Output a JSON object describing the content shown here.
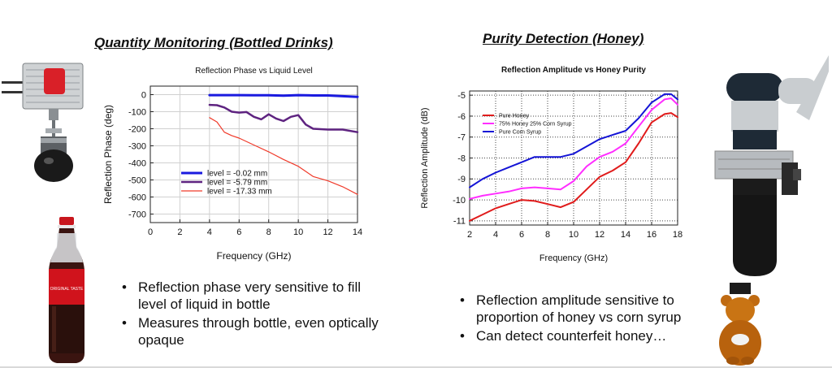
{
  "left": {
    "heading": "Quantity Monitoring (Bottled Drinks)",
    "bullets": [
      "Reflection phase very sensitive to fill level of liquid in bottle",
      "Measures through bottle, even optically opaque"
    ],
    "bottle_label": "ORIGINAL TASTE"
  },
  "right": {
    "heading": "Purity Detection (Honey)",
    "bullets": [
      "Reflection amplitude sensitive to proportion of honey vs corn syrup",
      "Can detect counterfeit honey…"
    ]
  },
  "bullet_char": "•",
  "chart_data": [
    {
      "type": "line",
      "title": "Reflection Phase vs Liquid Level",
      "xlabel": "Frequency (GHz)",
      "ylabel": "Reflection Phase (deg)",
      "xlim": [
        0,
        14
      ],
      "ylim": [
        -750,
        50
      ],
      "xticks": [
        0,
        2,
        4,
        6,
        8,
        10,
        12,
        14
      ],
      "yticks": [
        0,
        -100,
        -200,
        -300,
        -400,
        -500,
        -600,
        -700
      ],
      "grid": true,
      "legend": "lower-left",
      "series": [
        {
          "name": "level = -0.02 mm",
          "color": "#1a1adf",
          "x": [
            4,
            5,
            6,
            7,
            8,
            9,
            10,
            11,
            12,
            13,
            14
          ],
          "y": [
            -3,
            -3,
            -3,
            -4,
            -4,
            -6,
            -3,
            -5,
            -5,
            -9,
            -13
          ]
        },
        {
          "name": "level = -5.79 mm",
          "color": "#5e2380",
          "x": [
            4,
            4.5,
            5,
            5.5,
            6,
            6.5,
            7,
            7.5,
            8,
            8.5,
            9,
            9.5,
            10,
            10.5,
            11,
            12,
            13,
            14
          ],
          "y": [
            -60,
            -62,
            -75,
            -100,
            -105,
            -102,
            -130,
            -145,
            -115,
            -140,
            -155,
            -130,
            -120,
            -175,
            -200,
            -205,
            -205,
            -220
          ]
        },
        {
          "name": "level = -17.33 mm",
          "color": "#f03a2a",
          "x": [
            4,
            4.5,
            5,
            5.5,
            6,
            7,
            8,
            9,
            10,
            10.5,
            11,
            12,
            13,
            14
          ],
          "y": [
            -135,
            -160,
            -220,
            -240,
            -255,
            -295,
            -335,
            -380,
            -420,
            -450,
            -480,
            -505,
            -540,
            -585
          ]
        }
      ]
    },
    {
      "type": "line",
      "title": "Reflection Amplitude vs Honey Purity",
      "xlabel": "Frequency (GHz)",
      "ylabel": "Reflection Amplitude (dB)",
      "xlim": [
        2,
        18
      ],
      "ylim": [
        -11.2,
        -4.8
      ],
      "xticks": [
        2,
        4,
        6,
        8,
        10,
        12,
        14,
        16,
        18
      ],
      "yticks": [
        -5,
        -6,
        -7,
        -8,
        -9,
        -10,
        -11
      ],
      "grid": true,
      "legend": "upper-left",
      "series": [
        {
          "name": "Pure Honey",
          "color": "#e01b1b",
          "x": [
            2,
            3,
            4,
            5,
            6,
            7,
            8,
            9,
            10,
            11,
            12,
            13,
            14,
            15,
            16,
            17,
            17.5,
            18
          ],
          "y": [
            -11.0,
            -10.7,
            -10.4,
            -10.2,
            -10.0,
            -10.05,
            -10.2,
            -10.35,
            -10.1,
            -9.5,
            -8.9,
            -8.6,
            -8.2,
            -7.3,
            -6.3,
            -5.9,
            -5.85,
            -6.05
          ]
        },
        {
          "name": "75% Honey 25% Corn Syrup",
          "color": "#ff2dff",
          "x": [
            2,
            3,
            4,
            5,
            6,
            7,
            8,
            9,
            10,
            11,
            12,
            13,
            14,
            15,
            16,
            17,
            17.5,
            18
          ],
          "y": [
            -9.95,
            -9.8,
            -9.7,
            -9.6,
            -9.45,
            -9.4,
            -9.45,
            -9.5,
            -9.1,
            -8.4,
            -7.95,
            -7.7,
            -7.3,
            -6.5,
            -5.7,
            -5.2,
            -5.15,
            -5.45
          ]
        },
        {
          "name": "Pure Corn Syrup",
          "color": "#1414d6",
          "x": [
            2,
            3,
            4,
            5,
            6,
            7,
            8,
            9,
            10,
            11,
            12,
            13,
            14,
            15,
            16,
            17,
            17.5,
            18
          ],
          "y": [
            -9.4,
            -9.0,
            -8.7,
            -8.45,
            -8.2,
            -7.95,
            -7.95,
            -7.95,
            -7.8,
            -7.45,
            -7.1,
            -6.9,
            -6.7,
            -6.1,
            -5.35,
            -4.95,
            -4.95,
            -5.2
          ]
        }
      ]
    }
  ]
}
